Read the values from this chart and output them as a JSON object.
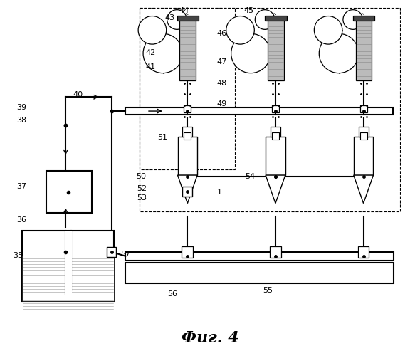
{
  "bg_color": "#ffffff",
  "line_color": "#000000",
  "fig_width": 5.9,
  "fig_height": 5.0,
  "dpi": 100,
  "title": "Фиг. 4"
}
